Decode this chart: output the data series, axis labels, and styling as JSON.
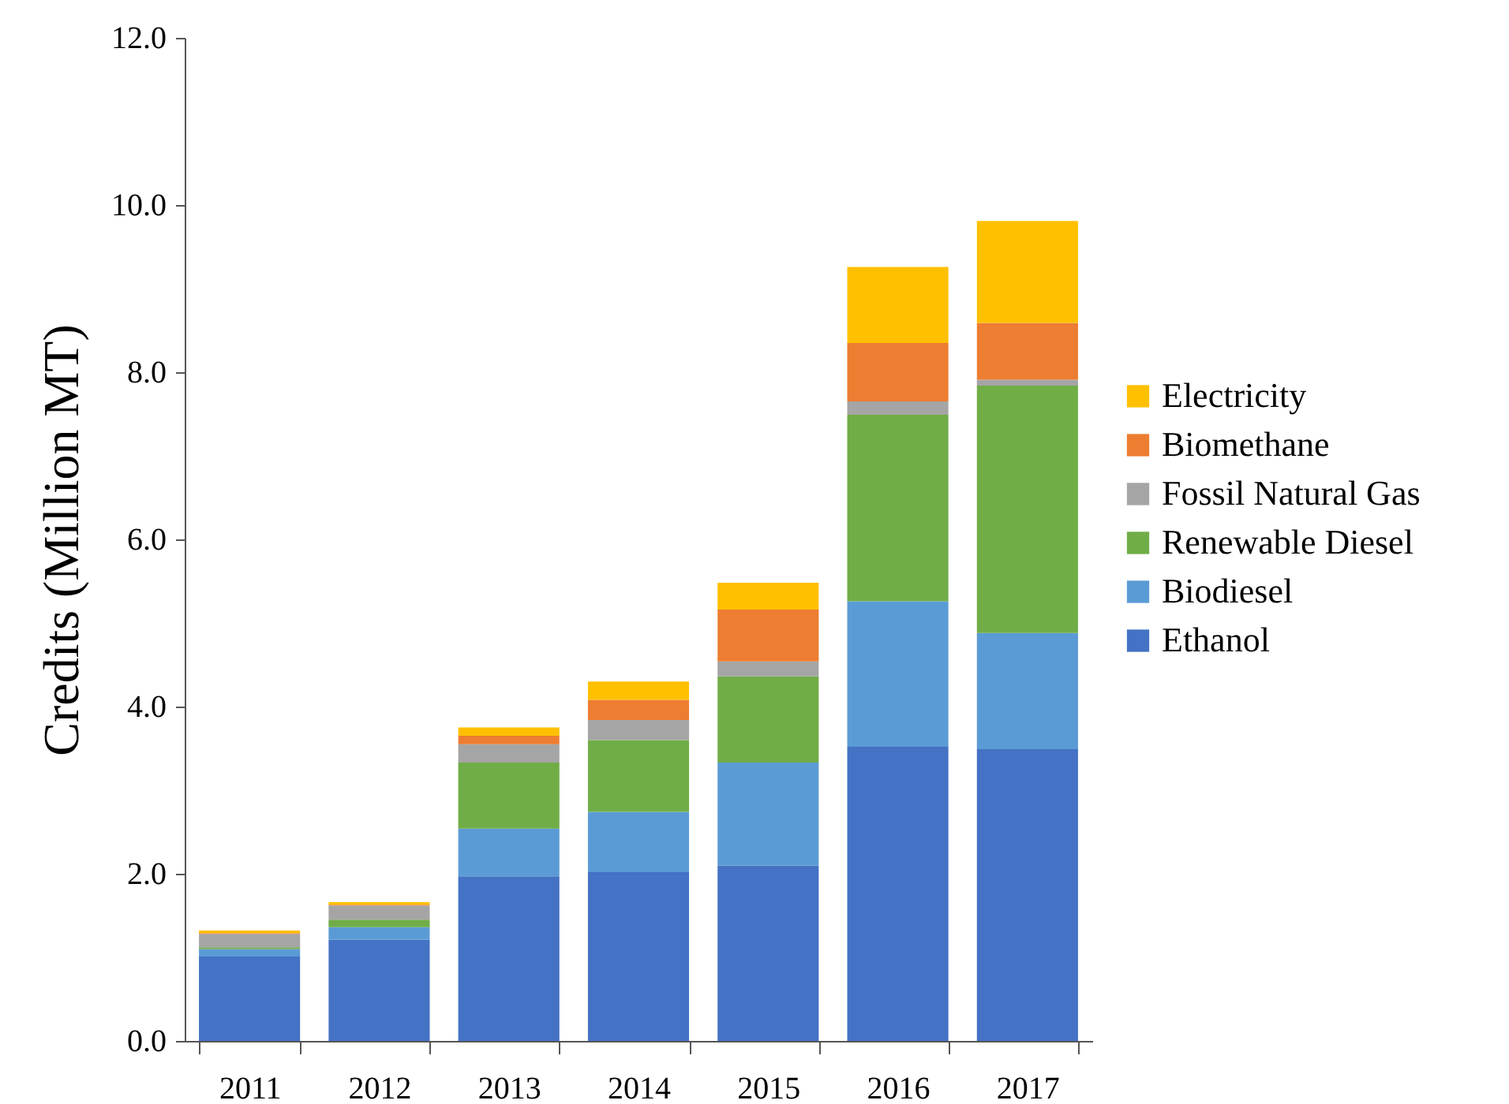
{
  "chart_data": {
    "type": "bar",
    "stacked": true,
    "ylabel": "Credits (Million MT)",
    "categories": [
      "2011",
      "2012",
      "2013",
      "2014",
      "2015",
      "2016",
      "2017"
    ],
    "series": [
      {
        "name": "Ethanol",
        "color": "#4472c4",
        "values": [
          1.01,
          1.21,
          1.97,
          2.02,
          2.1,
          3.52,
          3.49
        ]
      },
      {
        "name": "Biodiesel",
        "color": "#5b9bd5",
        "values": [
          0.09,
          0.15,
          0.57,
          0.72,
          1.23,
          1.74,
          1.39
        ]
      },
      {
        "name": "Renewable Diesel",
        "color": "#70ad47",
        "values": [
          0.02,
          0.09,
          0.79,
          0.86,
          1.03,
          2.23,
          2.96
        ]
      },
      {
        "name": "Fossil Natural Gas",
        "color": "#a5a5a5",
        "values": [
          0.16,
          0.17,
          0.22,
          0.24,
          0.18,
          0.16,
          0.07
        ]
      },
      {
        "name": "Biomethane",
        "color": "#ed7d31",
        "values": [
          0.01,
          0.01,
          0.1,
          0.24,
          0.62,
          0.7,
          0.68
        ]
      },
      {
        "name": "Electricity",
        "color": "#ffc000",
        "values": [
          0.03,
          0.03,
          0.1,
          0.22,
          0.32,
          0.91,
          1.22
        ]
      }
    ],
    "ylim": [
      0,
      12
    ],
    "yticks": [
      {
        "value": 0,
        "label": "0.0"
      },
      {
        "value": 2,
        "label": "2.0"
      },
      {
        "value": 4,
        "label": "4.0"
      },
      {
        "value": 6,
        "label": "6.0"
      },
      {
        "value": 8,
        "label": "8.0"
      },
      {
        "value": 10,
        "label": "10.0"
      },
      {
        "value": 12,
        "label": "12.0"
      }
    ],
    "grid": false,
    "legend": "right"
  }
}
